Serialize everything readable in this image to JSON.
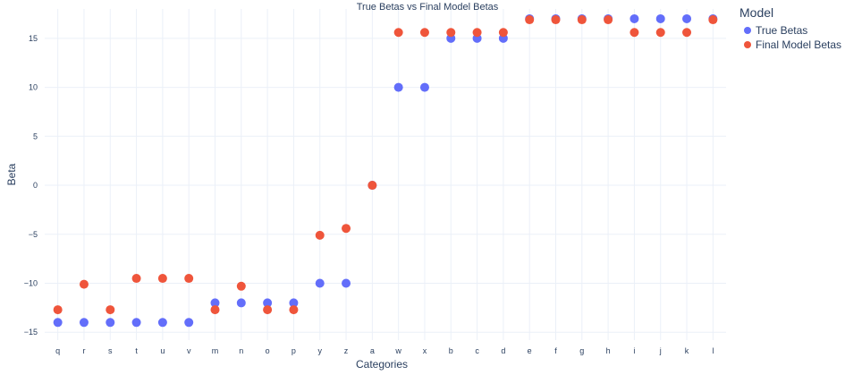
{
  "chart_data": {
    "type": "scatter",
    "title": "True Betas vs Final Model Betas",
    "xlabel": "Categories",
    "ylabel": "Beta",
    "categories": [
      "q",
      "r",
      "s",
      "t",
      "u",
      "v",
      "m",
      "n",
      "o",
      "p",
      "y",
      "z",
      "a",
      "w",
      "x",
      "b",
      "c",
      "d",
      "e",
      "f",
      "g",
      "h",
      "i",
      "j",
      "k",
      "l"
    ],
    "ylim": [
      -15.8,
      18
    ],
    "yticks": [
      -15,
      -10,
      -5,
      0,
      5,
      10,
      15
    ],
    "grid": true,
    "legend_title": "Model",
    "legend_position": "top-right",
    "series": [
      {
        "name": "True Betas",
        "color": "#636efa",
        "values": [
          -14,
          -14,
          -14,
          -14,
          -14,
          -14,
          -12,
          -12,
          -12,
          -12,
          -10,
          -10,
          0,
          10,
          10,
          15,
          15,
          15,
          17,
          17,
          17,
          17,
          17,
          17,
          17,
          17
        ]
      },
      {
        "name": "Final Model Betas",
        "color": "#ef553b",
        "values": [
          -12.7,
          -10.1,
          -12.7,
          -9.5,
          -9.5,
          -9.5,
          -12.7,
          -10.3,
          -12.7,
          -12.7,
          -5.1,
          -4.4,
          0,
          15.6,
          15.6,
          15.6,
          15.6,
          15.6,
          16.9,
          16.9,
          16.9,
          16.9,
          15.6,
          15.6,
          15.6,
          16.9
        ]
      }
    ]
  }
}
